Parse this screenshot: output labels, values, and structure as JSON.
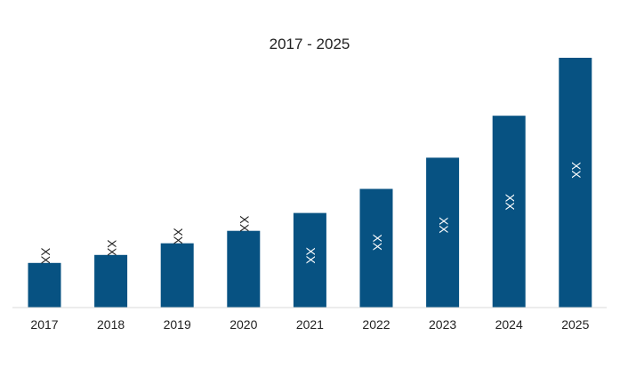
{
  "chart_data": {
    "type": "bar",
    "title": "2017 - 2025",
    "xlabel": "",
    "ylabel": "",
    "categories": [
      "2017",
      "2018",
      "2019",
      "2020",
      "2021",
      "2022",
      "2023",
      "2024",
      "2025"
    ],
    "values": [
      50,
      59,
      72,
      86,
      106,
      133,
      168,
      215,
      280
    ],
    "data_labels": [
      "XX",
      "XX",
      "XX",
      "XX",
      "XX",
      "XX",
      "XX",
      "XX",
      "XX"
    ],
    "ylim": [
      0,
      280
    ],
    "grid": false,
    "legend": "none",
    "colors": {
      "bar": "#075282",
      "axis": "#d9d9d9",
      "label_outside": "#222222",
      "label_inside": "#ffffff"
    }
  }
}
